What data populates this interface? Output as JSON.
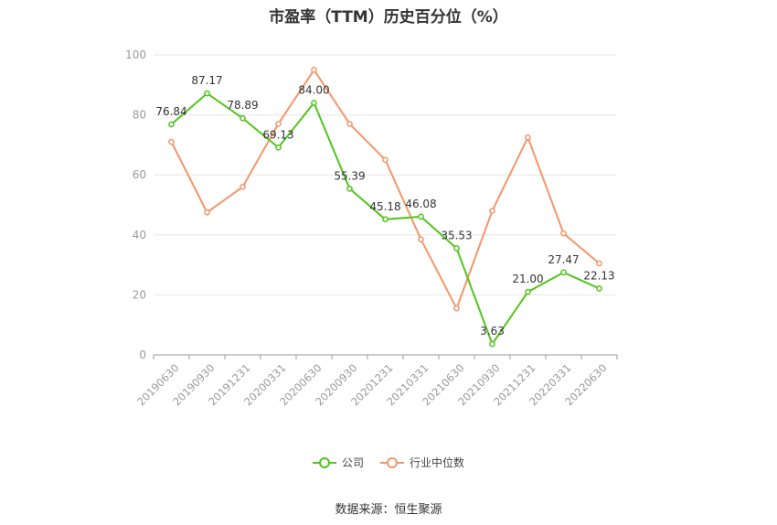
{
  "title": "市盈率（TTM）历史百分位（%）",
  "source": "数据来源：恒生聚源",
  "chart_data": {
    "type": "line",
    "title": "市盈率（TTM）历史百分位（%）",
    "categories": [
      "20190630",
      "20190930",
      "20191231",
      "20200331",
      "20200630",
      "20200930",
      "20201231",
      "20210331",
      "20210630",
      "20210930",
      "20211231",
      "20220331",
      "20220630"
    ],
    "ylim": [
      0,
      100
    ],
    "yticks": [
      0,
      20,
      40,
      60,
      80,
      100
    ],
    "grid": true,
    "legend_position": "bottom-center",
    "series": [
      {
        "name": "公司",
        "color": "#52c41a",
        "values": [
          76.84,
          87.17,
          78.89,
          69.13,
          84.0,
          55.39,
          45.18,
          46.08,
          35.53,
          3.63,
          21.0,
          27.47,
          22.13
        ],
        "labels": [
          "76.84",
          "87.17",
          "78.89",
          "69.13",
          "84.00",
          "55.39",
          "45.18",
          "46.08",
          "35.53",
          "3.63",
          "21.00",
          "27.47",
          "22.13"
        ]
      },
      {
        "name": "行业中位数",
        "color": "#f4956a",
        "values": [
          71.0,
          47.5,
          56.0,
          77.0,
          95.0,
          77.0,
          65.0,
          38.5,
          15.5,
          48.0,
          72.5,
          40.5,
          30.5
        ]
      }
    ]
  }
}
